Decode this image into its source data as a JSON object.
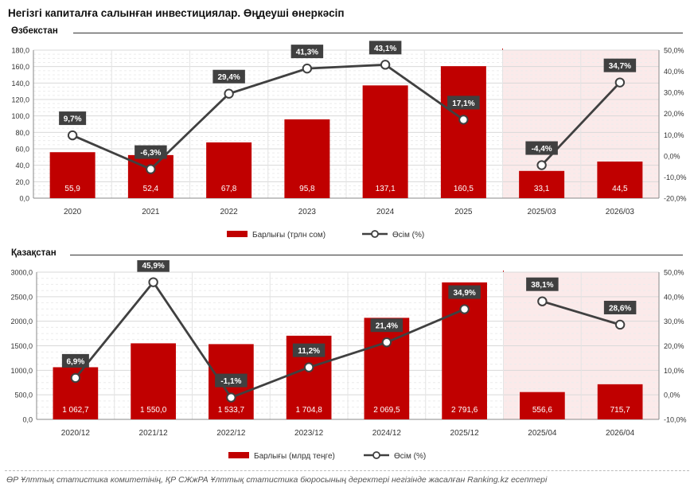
{
  "page": {
    "title": "Негізгі капиталға салынған инвестициялар. Өңдеуші өнеркәсіп",
    "footer": "ӨР Ұлттық статистика комитетінің, ҚР СЖжРА Ұлттық статистика бюросының деректері негізінде жасалған Ranking.kz есептері"
  },
  "colors": {
    "bar": "#c00000",
    "line": "#404040",
    "highlight_band": "#fbeaea",
    "label_box": "#404040"
  },
  "chart_data": [
    {
      "type": "bar",
      "section_title": "Өзбекстан",
      "categories": [
        "2020",
        "2021",
        "2022",
        "2023",
        "2024",
        "2025",
        "2025/03",
        "2026/03"
      ],
      "series": [
        {
          "name": "Барлығы (трлн сом)",
          "type": "bar",
          "axis": "left",
          "values": [
            55.9,
            52.4,
            67.8,
            95.8,
            137.1,
            160.5,
            33.1,
            44.5
          ],
          "labels": [
            "55,9",
            "52,4",
            "67,8",
            "95,8",
            "137,1",
            "160,5",
            "33,1",
            "44,5"
          ]
        },
        {
          "name": "Өсім (%)",
          "type": "line",
          "axis": "right",
          "values": [
            9.7,
            -6.3,
            29.4,
            41.3,
            43.1,
            17.1,
            -4.4,
            34.7
          ],
          "labels": [
            "9,7%",
            "-6,3%",
            "29,4%",
            "41,3%",
            "43,1%",
            "17,1%",
            "-4,4%",
            "34,7%"
          ],
          "segments": [
            [
              0,
              5
            ],
            [
              6,
              7
            ]
          ]
        }
      ],
      "left_ticks": [
        "0,0",
        "20,0",
        "40,0",
        "60,0",
        "80,0",
        "100,0",
        "120,0",
        "140,0",
        "160,0",
        "180,0"
      ],
      "right_ticks": [
        "-20,0%",
        "-10,0%",
        "0,0%",
        "10,0%",
        "20,0%",
        "30,0%",
        "40,0%",
        "50,0%"
      ],
      "ylim_left": [
        0,
        180
      ],
      "ylim_right": [
        -20,
        50
      ],
      "highlight_from_index": 6,
      "grid": true,
      "legend_position": "bottom"
    },
    {
      "type": "bar",
      "section_title": "Қазақстан",
      "categories": [
        "2020/12",
        "2021/12",
        "2022/12",
        "2023/12",
        "2024/12",
        "2025/12",
        "2025/04",
        "2026/04"
      ],
      "series": [
        {
          "name": "Барлығы (млрд теңге)",
          "type": "bar",
          "axis": "left",
          "values": [
            1062.7,
            1550.0,
            1533.7,
            1704.8,
            2069.5,
            2791.6,
            556.6,
            715.7
          ],
          "labels": [
            "1 062,7",
            "1 550,0",
            "1 533,7",
            "1 704,8",
            "2 069,5",
            "2 791,6",
            "556,6",
            "715,7"
          ]
        },
        {
          "name": "Өсім (%)",
          "type": "line",
          "axis": "right",
          "values": [
            6.9,
            45.9,
            -1.1,
            11.2,
            21.4,
            34.9,
            38.1,
            28.6
          ],
          "labels": [
            "6,9%",
            "45,9%",
            "-1,1%",
            "11,2%",
            "21,4%",
            "34,9%",
            "38,1%",
            "28,6%"
          ],
          "segments": [
            [
              0,
              5
            ],
            [
              6,
              7
            ]
          ]
        }
      ],
      "left_ticks": [
        "0,0",
        "500,0",
        "1000,0",
        "1500,0",
        "2000,0",
        "2500,0",
        "3000,0"
      ],
      "right_ticks": [
        "-10,0%",
        "0,0%",
        "10,0%",
        "20,0%",
        "30,0%",
        "40,0%",
        "50,0%"
      ],
      "ylim_left": [
        0,
        3000
      ],
      "ylim_right": [
        -10,
        50
      ],
      "highlight_from_index": 6,
      "grid": true,
      "legend_position": "bottom"
    }
  ]
}
